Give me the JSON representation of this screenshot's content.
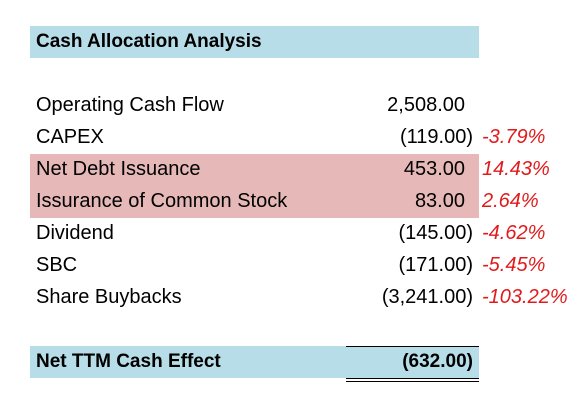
{
  "title": "Cash Allocation Analysis",
  "colors": {
    "header_fill": "#b7dde8",
    "highlight_fill": "#e6b9b8",
    "percent_text": "#e01b1b"
  },
  "rows": [
    {
      "label": "Operating Cash Flow",
      "value": "2,508.00",
      "percent": "",
      "highlight": false
    },
    {
      "label": "CAPEX",
      "value": "(119.00)",
      "percent": "-3.79%",
      "highlight": false
    },
    {
      "label": "Net Debt Issuance",
      "value": "453.00",
      "percent": "14.43%",
      "highlight": true
    },
    {
      "label": "Issurance of Common Stock",
      "value": "83.00",
      "percent": "2.64%",
      "highlight": true
    },
    {
      "label": "Dividend",
      "value": "(145.00)",
      "percent": "-4.62%",
      "highlight": false
    },
    {
      "label": "SBC",
      "value": "(171.00)",
      "percent": "-5.45%",
      "highlight": false
    },
    {
      "label": "Share Buybacks",
      "value": "(3,241.00)",
      "percent": "-103.22%",
      "highlight": false
    }
  ],
  "total": {
    "label": "Net TTM Cash Effect",
    "value": "(632.00)"
  }
}
